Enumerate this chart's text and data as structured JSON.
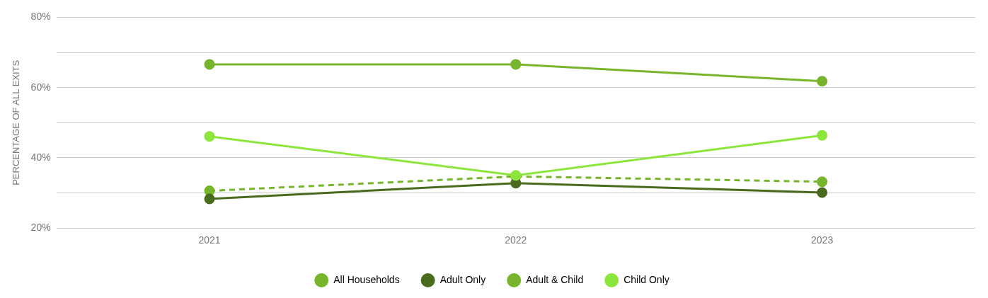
{
  "chart_data": {
    "type": "line",
    "ylabel": "PERCENTAGE OF ALL EXITS",
    "categories": [
      "2021",
      "2022",
      "2023"
    ],
    "series": [
      {
        "name": "All Households",
        "color": "#76b52c",
        "values": [
          30.6,
          34.7,
          33.2
        ],
        "line_style": "dashed"
      },
      {
        "name": "Adult Only",
        "color": "#4a6b1e",
        "values": [
          28.3,
          32.8,
          30.1
        ]
      },
      {
        "name": "Adult & Child",
        "color": "#78b42c",
        "values": [
          66.6,
          66.6,
          61.8
        ]
      },
      {
        "name": "Child Only",
        "color": "#8ce63c",
        "values": [
          46.1,
          35.0,
          46.4
        ]
      }
    ],
    "ylim": [
      20,
      80
    ],
    "yticks": [
      {
        "value": 20,
        "label": "20%"
      },
      {
        "value": 30,
        "label": null
      },
      {
        "value": 40,
        "label": "40%"
      },
      {
        "value": 50,
        "label": null
      },
      {
        "value": 60,
        "label": "60%"
      },
      {
        "value": 70,
        "label": null
      },
      {
        "value": 80,
        "label": "80%"
      }
    ],
    "grid": "y",
    "legend": "bottom",
    "marker": "circle"
  }
}
